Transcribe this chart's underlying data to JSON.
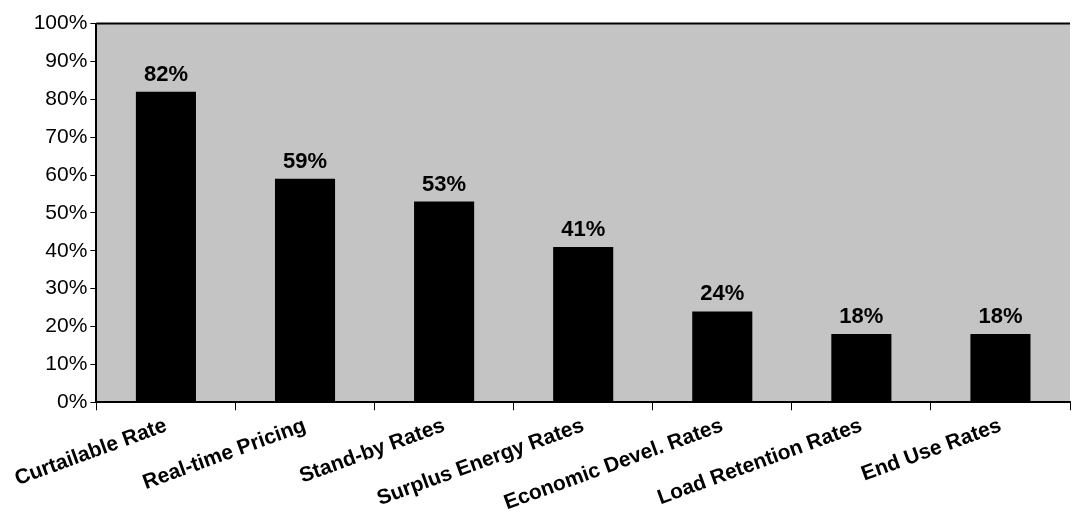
{
  "chart_data": {
    "type": "bar",
    "categories": [
      "Curtailable Rate",
      "Real-time Pricing",
      "Stand-by Rates",
      "Surplus Energy Rates",
      "Economic Devel. Rates",
      "Load Retention Rates",
      "End Use Rates"
    ],
    "values": [
      82,
      59,
      53,
      41,
      24,
      18,
      18
    ],
    "value_labels": [
      "82%",
      "59%",
      "53%",
      "41%",
      "24%",
      "18%",
      "18%"
    ],
    "color": "#000000",
    "ylim": [
      0,
      100
    ],
    "yticks": [
      {
        "value": 0,
        "label": "0%"
      },
      {
        "value": 10,
        "label": "10%"
      },
      {
        "value": 20,
        "label": "20%"
      },
      {
        "value": 30,
        "label": "30%"
      },
      {
        "value": 40,
        "label": "40%"
      },
      {
        "value": 50,
        "label": "50%"
      },
      {
        "value": 60,
        "label": "60%"
      },
      {
        "value": 70,
        "label": "70%"
      },
      {
        "value": 80,
        "label": "80%"
      },
      {
        "value": 90,
        "label": "90%"
      },
      {
        "value": 100,
        "label": "100%"
      }
    ],
    "grid": false,
    "legend": false
  }
}
